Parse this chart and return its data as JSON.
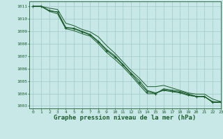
{
  "bg_color": "#c8e8e8",
  "grid_color": "#a0c8c8",
  "line_color": "#1a5c2a",
  "marker_color": "#1a5c2a",
  "xlabel": "Graphe pression niveau de la mer (hPa)",
  "xlabel_fontsize": 6.5,
  "xlim": [
    -0.5,
    23
  ],
  "ylim": [
    1002.8,
    1011.4
  ],
  "yticks": [
    1003,
    1004,
    1005,
    1006,
    1007,
    1008,
    1009,
    1010,
    1011
  ],
  "xticks": [
    0,
    1,
    2,
    3,
    4,
    5,
    6,
    7,
    8,
    9,
    10,
    11,
    12,
    13,
    14,
    15,
    16,
    17,
    18,
    19,
    20,
    21,
    22,
    23
  ],
  "series1": [
    1011.0,
    1011.0,
    1010.65,
    1010.55,
    1009.3,
    1009.25,
    1009.0,
    1008.75,
    1008.2,
    1007.55,
    1007.05,
    1006.35,
    1005.65,
    1005.05,
    1004.25,
    1004.05,
    1004.25,
    1004.15,
    1004.05,
    1003.85,
    1003.75,
    1003.75,
    1003.35,
    1003.3
  ],
  "series2": [
    1011.0,
    1011.0,
    1010.85,
    1010.75,
    1009.65,
    1009.45,
    1009.15,
    1008.95,
    1008.55,
    1007.85,
    1007.25,
    1006.55,
    1005.85,
    1005.25,
    1004.55,
    1004.55,
    1004.65,
    1004.45,
    1004.25,
    1004.05,
    1003.95,
    1003.95,
    1003.55,
    1003.35
  ],
  "series3": [
    1011.0,
    1011.0,
    1010.6,
    1010.4,
    1009.2,
    1009.05,
    1008.8,
    1008.6,
    1008.0,
    1007.3,
    1006.75,
    1006.15,
    1005.45,
    1004.7,
    1003.98,
    1003.98,
    1004.38,
    1004.28,
    1004.18,
    1003.98,
    1003.78,
    1003.78,
    1003.28,
    1003.28
  ],
  "marker_series": [
    1011.0,
    1011.0,
    1010.65,
    1010.55,
    1009.3,
    1009.2,
    1008.95,
    1008.7,
    1008.15,
    1007.45,
    1006.95,
    1006.3,
    1005.6,
    1004.85,
    1004.15,
    1004.0,
    1004.3,
    1004.2,
    1004.1,
    1003.9,
    1003.75,
    1003.75,
    1003.3,
    1003.3
  ]
}
